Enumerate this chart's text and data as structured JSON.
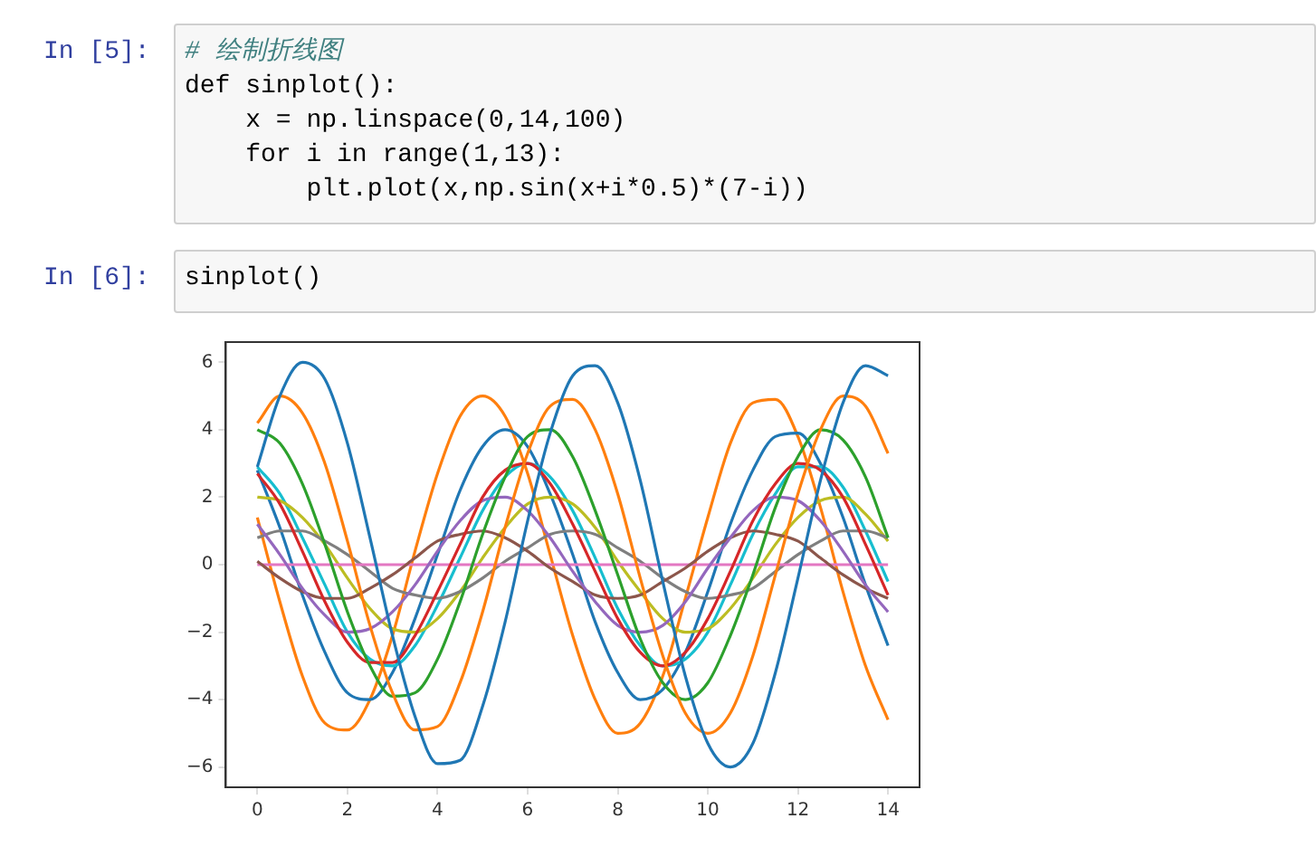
{
  "chart_data": {
    "type": "line",
    "marker": "none",
    "line_style": "solid",
    "grid": false,
    "legend": false,
    "annotations": [
      "In [5]:",
      "# 绘制折线图",
      "def sinplot():",
      "    x = np.linspace(0,14,100)",
      "    for i in range(1,13):",
      "        plt.plot(x,np.sin(x+i*0.5)*(7-i))",
      "In [6]:",
      "sinplot()"
    ],
    "x": [
      0,
      0.5,
      1,
      1.5,
      2,
      2.5,
      3,
      3.5,
      4,
      4.5,
      5,
      5.5,
      6,
      6.5,
      7,
      7.5,
      8,
      8.5,
      9,
      9.5,
      10,
      10.5,
      11,
      11.5,
      12,
      12.5,
      13,
      13.5,
      14
    ],
    "xlim": [
      -0.7,
      14.7
    ],
    "xticks": [
      0,
      2,
      4,
      6,
      8,
      10,
      12,
      14
    ],
    "ylim": [
      -6.6,
      6.6
    ],
    "yticks": [
      -6,
      -4,
      -2,
      0,
      2,
      4,
      6
    ],
    "series": [
      {
        "color": "#1f77b4",
        "values": [
          2.9,
          5.0,
          6.0,
          5.5,
          3.6,
          0.8,
          -2.1,
          -4.5,
          -5.9,
          -5.8,
          -4.2,
          -1.7,
          1.3,
          3.9,
          5.6,
          5.9,
          4.8,
          2.5,
          -0.5,
          -3.3,
          -5.3,
          -6.0,
          -5.3,
          -3.2,
          -0.4,
          2.5,
          4.8,
          5.9,
          5.6
        ]
      },
      {
        "color": "#ff7f0e",
        "values": [
          4.2,
          5.0,
          4.5,
          3.0,
          0.7,
          -1.8,
          -3.8,
          -4.9,
          -4.8,
          -3.5,
          -1.4,
          1.1,
          3.3,
          4.7,
          4.9,
          4.0,
          2.1,
          -0.4,
          -2.7,
          -4.4,
          -5.0,
          -4.4,
          -2.7,
          -0.3,
          2.1,
          4.0,
          5.0,
          4.7,
          3.3
        ]
      },
      {
        "color": "#2ca02c",
        "values": [
          4.0,
          3.6,
          2.4,
          0.6,
          -1.4,
          -3.0,
          -3.9,
          -3.8,
          -2.8,
          -1.1,
          0.9,
          2.6,
          3.8,
          4.0,
          3.2,
          1.6,
          -0.3,
          -2.2,
          -3.5,
          -4.0,
          -3.5,
          -2.1,
          -0.3,
          1.7,
          3.2,
          4.0,
          3.7,
          2.6,
          0.8
        ]
      },
      {
        "color": "#d62728",
        "values": [
          2.7,
          1.8,
          0.4,
          -1.1,
          -2.3,
          -2.9,
          -2.9,
          -2.1,
          -0.8,
          0.6,
          2.0,
          2.8,
          3.0,
          2.4,
          1.2,
          -0.2,
          -1.6,
          -2.6,
          -3.0,
          -2.6,
          -1.6,
          -0.2,
          1.3,
          2.4,
          3.0,
          2.8,
          2.0,
          0.6,
          -0.9
        ]
      },
      {
        "color": "#9467bd",
        "values": [
          1.2,
          0.3,
          -0.7,
          -1.5,
          -2.0,
          -1.9,
          -1.4,
          -0.6,
          0.4,
          1.3,
          1.9,
          2.0,
          1.6,
          0.8,
          -0.2,
          -1.1,
          -1.8,
          -2.0,
          -1.8,
          -1.1,
          -0.1,
          0.8,
          1.6,
          2.0,
          1.9,
          1.3,
          0.4,
          -0.6,
          -1.4
        ]
      },
      {
        "color": "#8c564b",
        "values": [
          0.1,
          -0.4,
          -0.8,
          -1.0,
          -1.0,
          -0.7,
          -0.3,
          0.2,
          0.7,
          0.9,
          1.0,
          0.8,
          0.4,
          -0.1,
          -0.5,
          -0.9,
          -1.0,
          -0.9,
          -0.5,
          -0.1,
          0.4,
          0.8,
          1.0,
          0.9,
          0.7,
          0.2,
          -0.3,
          -0.7,
          -1.0
        ]
      },
      {
        "color": "#e377c2",
        "values": [
          0,
          0,
          0,
          0,
          0,
          0,
          0,
          0,
          0,
          0,
          0,
          0,
          0,
          0,
          0,
          0,
          0,
          0,
          0,
          0,
          0,
          0,
          0,
          0,
          0,
          0,
          0,
          0,
          0
        ]
      },
      {
        "color": "#7f7f7f",
        "values": [
          0.8,
          1.0,
          1.0,
          0.7,
          0.3,
          -0.2,
          -0.7,
          -0.9,
          -1.0,
          -0.8,
          -0.4,
          0.1,
          0.5,
          0.9,
          1.0,
          0.9,
          0.5,
          0.1,
          -0.4,
          -0.8,
          -1.0,
          -0.9,
          -0.7,
          -0.2,
          0.3,
          0.7,
          1.0,
          1.0,
          0.8
        ]
      },
      {
        "color": "#bcbd22",
        "values": [
          2.0,
          1.9,
          1.4,
          0.6,
          -0.4,
          -1.3,
          -1.9,
          -2.0,
          -1.6,
          -0.8,
          0.2,
          1.1,
          1.8,
          2.0,
          1.8,
          1.1,
          0.1,
          -0.8,
          -1.6,
          -2.0,
          -1.9,
          -1.3,
          -0.4,
          0.6,
          1.4,
          1.9,
          2.0,
          1.5,
          0.7
        ]
      },
      {
        "color": "#17becf",
        "values": [
          2.9,
          2.1,
          0.8,
          -0.6,
          -2.0,
          -2.8,
          -3.0,
          -2.4,
          -1.2,
          0.2,
          1.6,
          2.6,
          3.0,
          2.6,
          1.6,
          0.2,
          -1.3,
          -2.4,
          -3.0,
          -2.8,
          -2.0,
          -0.6,
          0.9,
          2.1,
          2.9,
          2.9,
          2.3,
          1.0,
          -0.5
        ]
      },
      {
        "color": "#1f77b4",
        "values": [
          2.8,
          1.1,
          -0.9,
          -2.6,
          -3.8,
          -4.0,
          -3.2,
          -1.6,
          0.3,
          2.2,
          3.5,
          4.0,
          3.5,
          2.1,
          0.3,
          -1.7,
          -3.2,
          -4.0,
          -3.7,
          -2.6,
          -0.8,
          1.2,
          2.8,
          3.8,
          3.9,
          3.0,
          1.4,
          -0.6,
          -2.4
        ]
      },
      {
        "color": "#ff7f0e",
        "values": [
          1.4,
          -1.1,
          -3.3,
          -4.7,
          -4.9,
          -4.0,
          -2.1,
          0.4,
          2.7,
          4.4,
          5.0,
          4.4,
          2.7,
          0.3,
          -2.1,
          -4.0,
          -5.0,
          -4.7,
          -3.3,
          -1.0,
          1.4,
          3.6,
          4.8,
          4.9,
          3.8,
          1.7,
          -0.8,
          -3.0,
          -4.6
        ]
      }
    ]
  }
}
